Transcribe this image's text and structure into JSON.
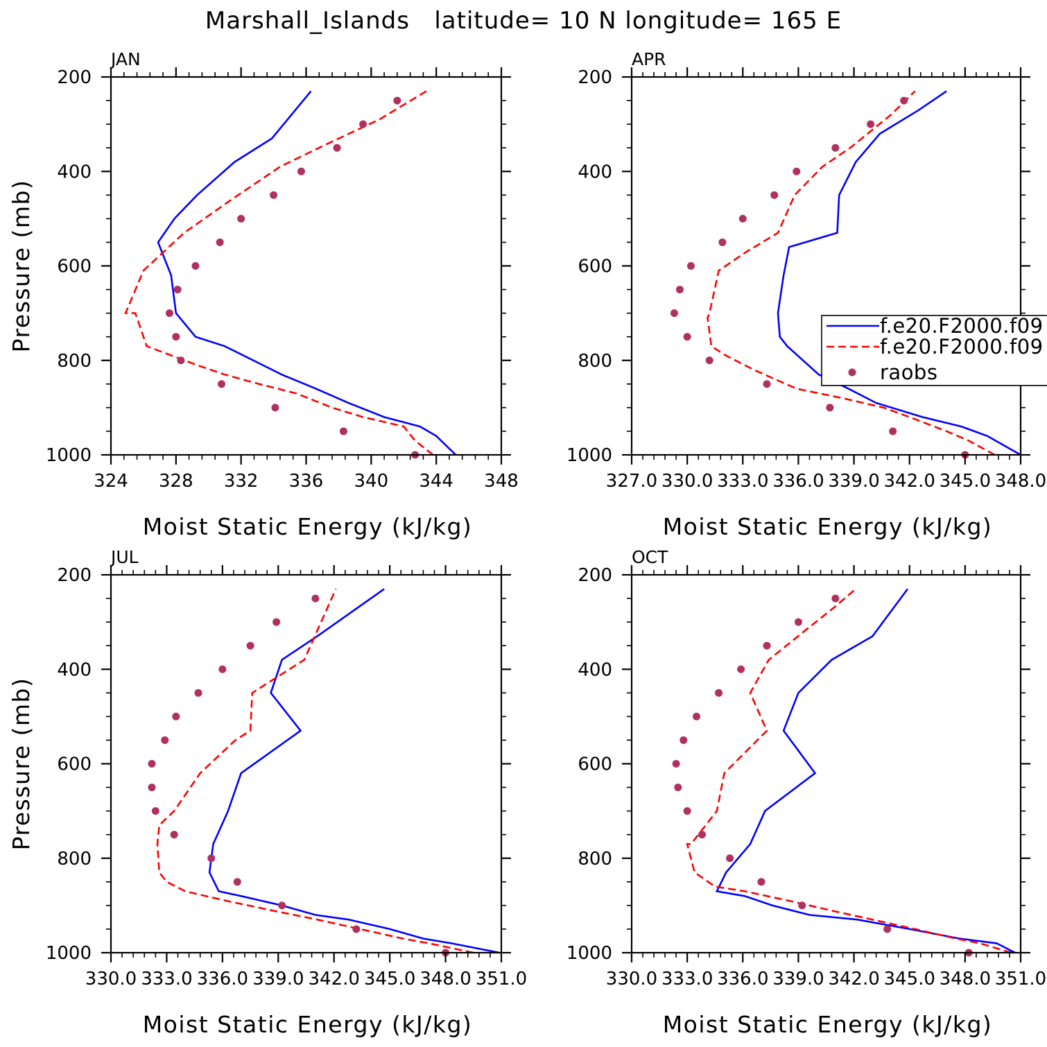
{
  "title": "Marshall_Islands   latitude= 10 N longitude= 165 E",
  "colors": {
    "model_1": "#0000ff",
    "model_2": "#ff0000",
    "raobs": "#b03060",
    "axis": "#000000"
  },
  "legend": {
    "items": [
      {
        "label": "f.e20.F2000.f09",
        "style": "solid",
        "color": "#0000ff"
      },
      {
        "label": "f.e20.F2000.f09",
        "style": "dashed",
        "color": "#ff0000"
      },
      {
        "label": "raobs",
        "style": "dot",
        "color": "#b03060"
      }
    ]
  },
  "chart_data": [
    {
      "type": "line",
      "panel_label": "JAN",
      "xlabel": "Moist Static Energy (kJ/kg)",
      "ylabel": "Pressure (mb)",
      "xlim": [
        324,
        348
      ],
      "ylim": [
        1000,
        200
      ],
      "x_ticks": [
        324,
        328,
        332,
        336,
        340,
        344,
        348
      ],
      "x_tick_labels": [
        "324",
        "328",
        "332",
        "336",
        "340",
        "344",
        "348"
      ],
      "y_ticks": [
        200,
        400,
        600,
        800,
        1000
      ],
      "y_tick_labels": [
        "200",
        "400",
        "600",
        "800",
        "1000"
      ],
      "series": [
        {
          "style": "solid",
          "color": "#0000ff",
          "x": [
            345.2,
            344.0,
            343.0,
            340.8,
            338.6,
            336.6,
            334.5,
            331.0,
            329.2,
            328.0,
            327.7,
            326.9,
            327.9,
            329.3,
            331.6,
            333.9,
            336.3
          ],
          "y": [
            1000,
            960,
            940,
            920,
            890,
            860,
            830,
            770,
            750,
            700,
            620,
            550,
            500,
            450,
            380,
            330,
            230
          ]
        },
        {
          "style": "dashed",
          "color": "#ff0000",
          "x": [
            343.8,
            342.7,
            342.0,
            339.5,
            337.6,
            335.4,
            333.1,
            331.0,
            329.3,
            326.2,
            325.5,
            324.9,
            326.0,
            328.5,
            331.4,
            334.4,
            337.4,
            340.5,
            343.4
          ],
          "y": [
            1000,
            970,
            940,
            920,
            900,
            870,
            850,
            830,
            810,
            770,
            700,
            700,
            610,
            530,
            460,
            390,
            340,
            290,
            230
          ]
        },
        {
          "style": "dot",
          "color": "#b03060",
          "x": [
            342.7,
            338.3,
            334.1,
            330.8,
            328.3,
            328.0,
            327.6,
            328.1,
            329.2,
            330.7,
            332.0,
            334.0,
            335.7,
            337.9,
            339.5,
            341.6
          ],
          "y": [
            1000,
            950,
            900,
            850,
            800,
            750,
            700,
            650,
            600,
            550,
            500,
            450,
            400,
            350,
            300,
            250
          ]
        }
      ]
    },
    {
      "type": "line",
      "panel_label": "APR",
      "xlabel": "Moist Static Energy (kJ/kg)",
      "ylabel": "",
      "xlim": [
        327.0,
        348.0
      ],
      "ylim": [
        1000,
        200
      ],
      "x_ticks": [
        327,
        330,
        333,
        336,
        339,
        342,
        345,
        348
      ],
      "x_tick_labels": [
        "327.0",
        "330.0",
        "333.0",
        "336.0",
        "339.0",
        "342.0",
        "345.0",
        "348.0"
      ],
      "y_ticks": [
        200,
        400,
        600,
        800,
        1000
      ],
      "y_tick_labels": [
        "200",
        "400",
        "600",
        "800",
        "1000"
      ],
      "series": [
        {
          "style": "solid",
          "color": "#0000ff",
          "x": [
            348.0,
            346.2,
            344.8,
            342.7,
            340.2,
            338.7,
            337.1,
            335.4,
            335.0,
            334.9,
            335.2,
            335.5,
            338.1,
            338.2,
            339.1,
            340.4,
            342.5,
            344.0
          ],
          "y": [
            1000,
            960,
            940,
            920,
            890,
            860,
            830,
            770,
            750,
            700,
            620,
            560,
            530,
            450,
            380,
            320,
            270,
            230
          ]
        },
        {
          "style": "dashed",
          "color": "#ff0000",
          "x": [
            346.6,
            345.2,
            344.0,
            342.0,
            340.6,
            338.4,
            335.9,
            333.6,
            332.1,
            331.3,
            331.1,
            331.2,
            331.7,
            333.2,
            334.9,
            335.8,
            337.3,
            338.8,
            341.0,
            342.3
          ],
          "y": [
            1000,
            970,
            950,
            920,
            900,
            880,
            860,
            820,
            790,
            770,
            710,
            700,
            610,
            570,
            530,
            450,
            390,
            350,
            280,
            230
          ]
        },
        {
          "style": "dot",
          "color": "#b03060",
          "x": [
            345.0,
            341.1,
            337.7,
            334.3,
            331.2,
            330.0,
            329.3,
            329.6,
            330.2,
            331.9,
            333.0,
            334.7,
            335.9,
            338.0,
            339.9,
            341.7
          ],
          "y": [
            1000,
            950,
            900,
            850,
            800,
            750,
            700,
            650,
            600,
            550,
            500,
            450,
            400,
            350,
            300,
            250
          ]
        }
      ]
    },
    {
      "type": "line",
      "panel_label": "JUL",
      "xlabel": "Moist Static Energy (kJ/kg)",
      "ylabel": "Pressure (mb)",
      "xlim": [
        330.0,
        351.0
      ],
      "ylim": [
        1000,
        200
      ],
      "x_ticks": [
        330,
        333,
        336,
        339,
        342,
        345,
        348,
        351
      ],
      "x_tick_labels": [
        "330.0",
        "333.0",
        "336.0",
        "339.0",
        "342.0",
        "345.0",
        "348.0",
        "351.0"
      ],
      "y_ticks": [
        200,
        400,
        600,
        800,
        1000
      ],
      "y_tick_labels": [
        "200",
        "400",
        "600",
        "800",
        "1000"
      ],
      "series": [
        {
          "style": "solid",
          "color": "#0000ff",
          "x": [
            350.9,
            348.3,
            346.8,
            345.0,
            342.8,
            341.0,
            339.2,
            337.0,
            335.8,
            335.3,
            335.5,
            336.3,
            337.0,
            340.2,
            338.6,
            339.2,
            341.1,
            344.7
          ],
          "y": [
            1000,
            980,
            970,
            950,
            930,
            920,
            900,
            880,
            870,
            830,
            770,
            700,
            620,
            530,
            450,
            380,
            330,
            230
          ]
        },
        {
          "style": "dashed",
          "color": "#ff0000",
          "x": [
            349.5,
            347.1,
            345.7,
            343.4,
            341.1,
            338.6,
            336.2,
            334.0,
            333.0,
            332.6,
            332.5,
            332.6,
            333.4,
            334.8,
            336.7,
            337.5,
            337.6,
            340.4,
            342.1
          ],
          "y": [
            1000,
            980,
            970,
            950,
            930,
            910,
            890,
            870,
            850,
            830,
            770,
            730,
            700,
            620,
            550,
            530,
            450,
            380,
            230
          ]
        },
        {
          "style": "dot",
          "color": "#b03060",
          "x": [
            348.0,
            343.2,
            339.2,
            336.8,
            335.4,
            333.4,
            332.4,
            332.2,
            332.2,
            332.9,
            333.5,
            334.7,
            336.0,
            337.5,
            338.9,
            341.0
          ],
          "y": [
            1000,
            950,
            900,
            850,
            800,
            750,
            700,
            650,
            600,
            550,
            500,
            450,
            400,
            350,
            300,
            250
          ]
        }
      ]
    },
    {
      "type": "line",
      "panel_label": "OCT",
      "xlabel": "Moist Static Energy (kJ/kg)",
      "ylabel": "",
      "xlim": [
        330.0,
        351.0
      ],
      "ylim": [
        1000,
        200
      ],
      "x_ticks": [
        330,
        333,
        336,
        339,
        342,
        345,
        348,
        351
      ],
      "x_tick_labels": [
        "330.0",
        "333.0",
        "336.0",
        "339.0",
        "342.0",
        "345.0",
        "348.0",
        "351.0"
      ],
      "y_ticks": [
        200,
        400,
        600,
        800,
        1000
      ],
      "y_tick_labels": [
        "200",
        "400",
        "600",
        "800",
        "1000"
      ],
      "series": [
        {
          "style": "solid",
          "color": "#0000ff",
          "x": [
            350.7,
            349.7,
            347.7,
            345.0,
            342.2,
            339.6,
            337.6,
            336.1,
            334.6,
            335.1,
            336.4,
            337.2,
            339.9,
            338.2,
            339.0,
            340.8,
            343.0,
            344.9
          ],
          "y": [
            1000,
            980,
            970,
            950,
            930,
            920,
            900,
            880,
            870,
            830,
            770,
            700,
            620,
            530,
            450,
            380,
            330,
            230
          ]
        },
        {
          "style": "dashed",
          "color": "#ff0000",
          "x": [
            350.5,
            348.8,
            347.5,
            345.3,
            343.0,
            340.7,
            338.5,
            336.1,
            334.5,
            333.4,
            333.0,
            333.2,
            334.6,
            335.0,
            337.3,
            336.4,
            337.4,
            339.3,
            340.9,
            342.1
          ],
          "y": [
            1000,
            980,
            970,
            950,
            930,
            910,
            890,
            870,
            860,
            830,
            770,
            770,
            700,
            620,
            530,
            450,
            380,
            320,
            270,
            230
          ]
        },
        {
          "style": "dot",
          "color": "#b03060",
          "x": [
            348.2,
            343.8,
            339.2,
            337.0,
            335.3,
            333.8,
            333.0,
            332.5,
            332.4,
            332.8,
            333.5,
            334.7,
            335.9,
            337.3,
            339.0,
            341.0
          ],
          "y": [
            1000,
            950,
            900,
            850,
            800,
            750,
            700,
            650,
            600,
            550,
            500,
            450,
            400,
            350,
            300,
            250
          ]
        }
      ]
    }
  ]
}
